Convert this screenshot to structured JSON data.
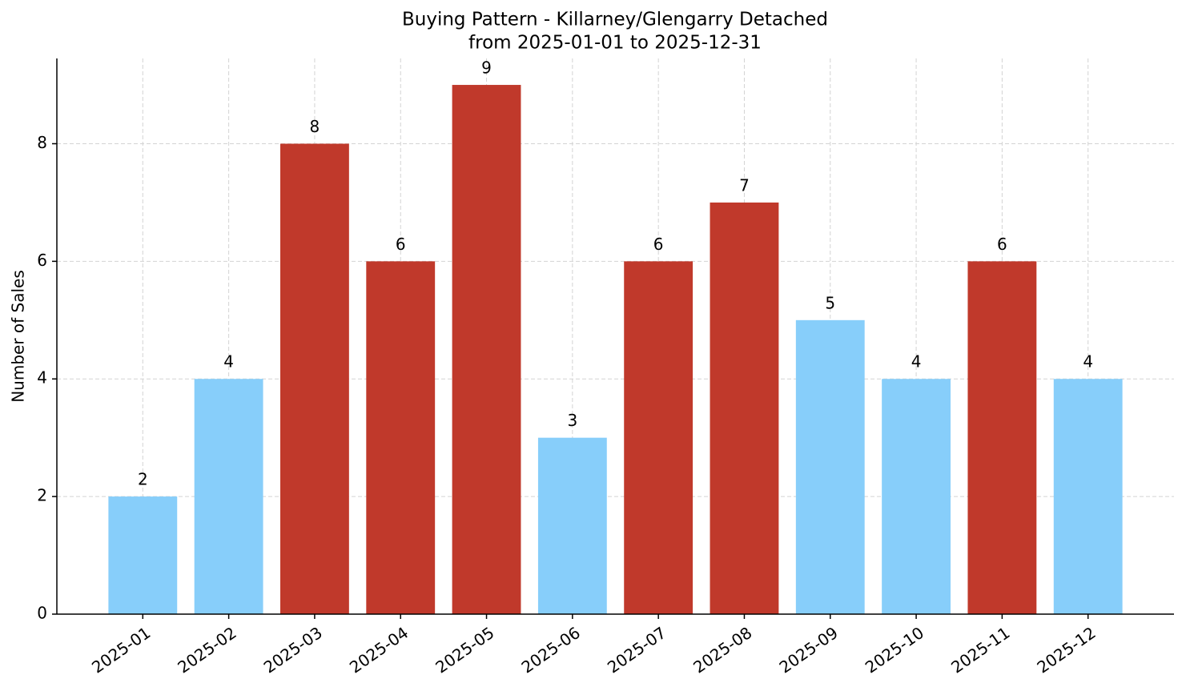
{
  "chart_data": {
    "type": "bar",
    "title": "Buying Pattern - Killarney/Glengarry Detached",
    "subtitle": "from 2025-01-01 to 2025-12-31",
    "y_label": "Number of Sales",
    "categories": [
      "2025-01",
      "2025-02",
      "2025-03",
      "2025-04",
      "2025-05",
      "2025-06",
      "2025-07",
      "2025-08",
      "2025-09",
      "2025-10",
      "2025-11",
      "2025-12"
    ],
    "values": [
      2,
      4,
      8,
      6,
      9,
      3,
      6,
      7,
      5,
      4,
      6,
      4
    ],
    "colors": [
      "#87cefa",
      "#87cefa",
      "#c0392b",
      "#c0392b",
      "#c0392b",
      "#87cefa",
      "#c0392b",
      "#c0392b",
      "#87cefa",
      "#87cefa",
      "#c0392b",
      "#87cefa"
    ],
    "ylim": [
      0,
      9.45
    ],
    "yticks": [
      0,
      2,
      4,
      6,
      8
    ],
    "grid": true
  }
}
